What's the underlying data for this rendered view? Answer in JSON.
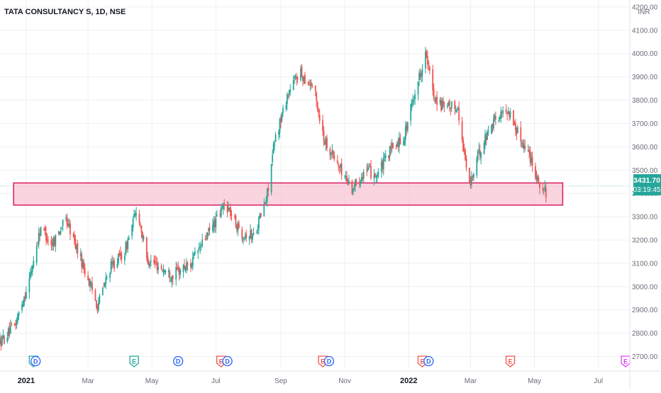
{
  "header": {
    "title": "TATA CONSULTANCY S, 1D, NSE"
  },
  "price_axis": {
    "currency": "INR",
    "last_price": "3431.70",
    "countdown": "03:19:45"
  },
  "colors": {
    "up": "#26a69a",
    "down": "#ef5350",
    "zone_fill": "#f8c6d4",
    "zone_border": "#d81b60",
    "grid": "#eef0f3",
    "text": "#131722",
    "axis_text": "#6a6d78",
    "earnings": "#ef5350",
    "dividend": "#2962ff",
    "earnings_teal": "#26a69a",
    "earnings_future": "#e040fb"
  },
  "chart_data": {
    "type": "candlestick",
    "title": "TATA CONSULTANCY S, 1D, NSE",
    "y_unit": "INR",
    "ylim": [
      2650,
      4230
    ],
    "y_ticks": [
      2700,
      2800,
      2900,
      3000,
      3100,
      3200,
      3300,
      3400,
      3500,
      3600,
      3700,
      3800,
      3900,
      4000,
      4100,
      4200
    ],
    "x_ticks": [
      "2021",
      "Mar",
      "May",
      "Jul",
      "Sep",
      "Nov",
      "2022",
      "Mar",
      "May",
      "Jul"
    ],
    "x_range": [
      "2020-12-07",
      "2022-07-31"
    ],
    "grid": true,
    "price_path": [
      [
        "2020-12-07",
        2760
      ],
      [
        "2020-12-21",
        2830
      ],
      [
        "2021-01-04",
        3030
      ],
      [
        "2021-01-15",
        3260
      ],
      [
        "2021-01-25",
        3180
      ],
      [
        "2021-02-08",
        3290
      ],
      [
        "2021-02-22",
        3120
      ],
      [
        "2021-03-10",
        2920
      ],
      [
        "2021-03-22",
        3080
      ],
      [
        "2021-04-05",
        3150
      ],
      [
        "2021-04-17",
        3340
      ],
      [
        "2021-04-26",
        3120
      ],
      [
        "2021-05-10",
        3080
      ],
      [
        "2021-05-20",
        3050
      ],
      [
        "2021-06-07",
        3100
      ],
      [
        "2021-06-20",
        3200
      ],
      [
        "2021-07-02",
        3290
      ],
      [
        "2021-07-10",
        3360
      ],
      [
        "2021-07-25",
        3230
      ],
      [
        "2021-08-06",
        3220
      ],
      [
        "2021-08-18",
        3370
      ],
      [
        "2021-08-26",
        3620
      ],
      [
        "2021-09-07",
        3820
      ],
      [
        "2021-09-18",
        3920
      ],
      [
        "2021-10-02",
        3860
      ],
      [
        "2021-10-12",
        3640
      ],
      [
        "2021-10-26",
        3520
      ],
      [
        "2021-11-08",
        3420
      ],
      [
        "2021-11-20",
        3500
      ],
      [
        "2021-12-02",
        3480
      ],
      [
        "2021-12-14",
        3580
      ],
      [
        "2021-12-28",
        3650
      ],
      [
        "2022-01-06",
        3820
      ],
      [
        "2022-01-17",
        4000
      ],
      [
        "2022-01-25",
        3820
      ],
      [
        "2022-02-04",
        3760
      ],
      [
        "2022-02-16",
        3780
      ],
      [
        "2022-02-28",
        3430
      ],
      [
        "2022-03-08",
        3560
      ],
      [
        "2022-03-22",
        3710
      ],
      [
        "2022-04-06",
        3760
      ],
      [
        "2022-04-16",
        3650
      ],
      [
        "2022-04-26",
        3570
      ],
      [
        "2022-05-06",
        3440
      ],
      [
        "2022-05-12",
        3400
      ]
    ],
    "annotations": [
      {
        "type": "support-resistance-zone",
        "y_low": 3350,
        "y_high": 3445,
        "x_start": "2020-12-20",
        "x_end": "2022-05-28"
      }
    ],
    "events": [
      {
        "date": "2021-01-08",
        "kind": "E"
      },
      {
        "date": "2021-01-10",
        "kind": "D"
      },
      {
        "date": "2021-04-14",
        "kind": "E"
      },
      {
        "date": "2021-05-26",
        "kind": "D"
      },
      {
        "date": "2021-07-06",
        "kind": "E"
      },
      {
        "date": "2021-07-12",
        "kind": "D"
      },
      {
        "date": "2021-10-11",
        "kind": "E"
      },
      {
        "date": "2021-10-17",
        "kind": "D"
      },
      {
        "date": "2022-01-14",
        "kind": "E"
      },
      {
        "date": "2022-01-20",
        "kind": "D"
      },
      {
        "date": "2022-04-08",
        "kind": "E"
      },
      {
        "date": "2022-07-27",
        "kind": "E"
      }
    ]
  }
}
